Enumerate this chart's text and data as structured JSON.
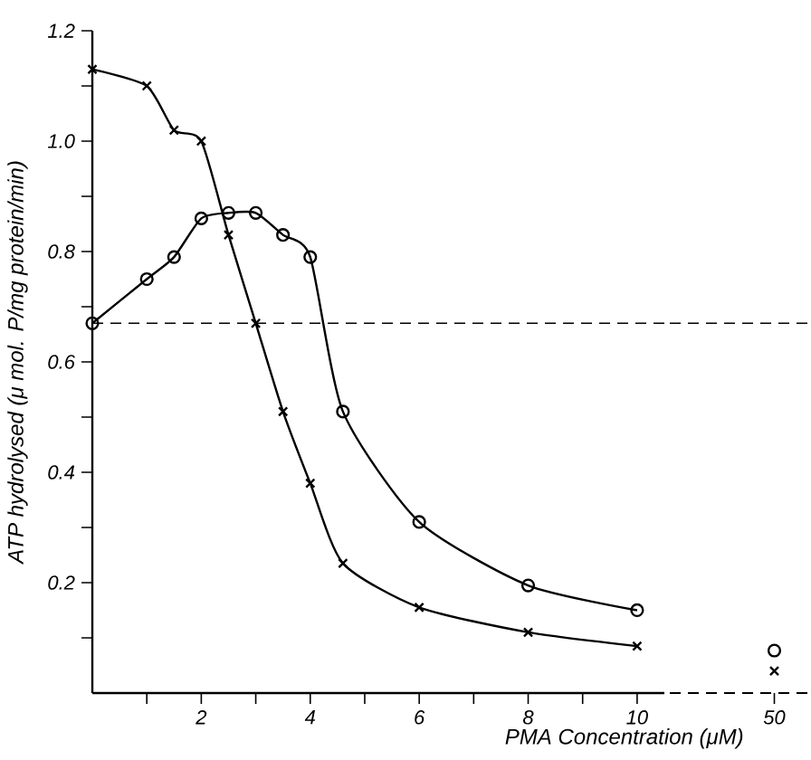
{
  "chart_data": [
    {
      "type": "line",
      "xlabel": "PMA Concentration (μM)",
      "ylabel": "ATP hydrolysed (μ mol. P/mg protein/min)",
      "xlim": [
        0,
        10.5
      ],
      "ylim": [
        0,
        1.2
      ],
      "xticks": [
        {
          "value": 1,
          "label": null
        },
        2,
        {
          "value": 3,
          "label": null
        },
        4,
        {
          "value": 5,
          "label": null
        },
        6,
        {
          "value": 7,
          "label": null
        },
        8,
        {
          "value": 9,
          "label": null
        },
        10
      ],
      "yticks": [
        {
          "value": 0.1,
          "label": null
        },
        0.2,
        {
          "value": 0.3,
          "label": null
        },
        0.4,
        {
          "value": 0.5,
          "label": null
        },
        0.6,
        {
          "value": 0.7,
          "label": null
        },
        0.8,
        {
          "value": 0.9,
          "label": null
        },
        {
          "value": 1.0,
          "label": "1.0"
        },
        {
          "value": 1.1,
          "label": null
        },
        1.2
      ],
      "ref_lines": [
        {
          "axis": "y",
          "value": 0.67,
          "line_style": "dashed"
        }
      ],
      "series": [
        {
          "color": "#000000",
          "marker": "circle",
          "x": [
            0,
            1,
            1.5,
            2,
            2.5,
            3,
            3.5,
            4,
            4.6,
            6,
            8,
            10
          ],
          "values": [
            0.67,
            0.75,
            0.79,
            0.86,
            0.87,
            0.87,
            0.83,
            0.79,
            0.51,
            0.31,
            0.195,
            0.15
          ]
        },
        {
          "color": "#000000",
          "marker": "cross",
          "x": [
            0,
            1,
            1.5,
            2,
            2.5,
            3,
            3.5,
            4,
            4.6,
            6,
            8,
            10
          ],
          "values": [
            1.13,
            1.1,
            1.02,
            1.0,
            0.83,
            0.67,
            0.51,
            0.38,
            0.235,
            0.155,
            0.11,
            0.085
          ]
        }
      ]
    },
    {
      "type": "scatter",
      "categories": [
        "50"
      ],
      "ylim": [
        0,
        1.2
      ],
      "tick_labels": "x",
      "ref_lines": [
        {
          "axis": "y",
          "value": 0.67,
          "line_style": "dashed"
        }
      ],
      "series": [
        {
          "color": "#000000",
          "marker": "circle",
          "values": [
            0.077
          ]
        },
        {
          "color": "#000000",
          "marker": "cross",
          "values": [
            0.04
          ]
        }
      ]
    }
  ]
}
